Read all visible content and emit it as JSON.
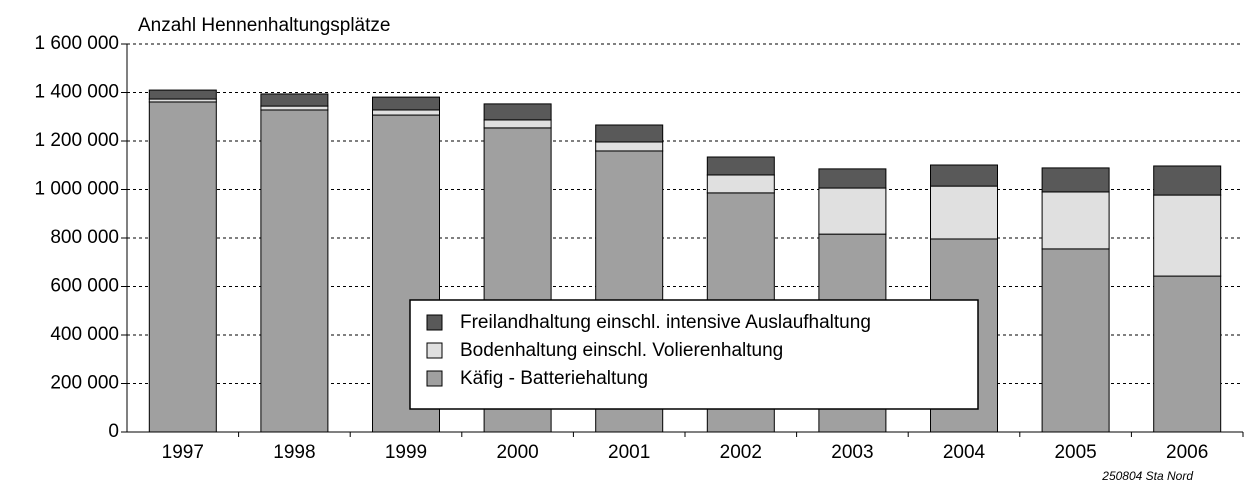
{
  "chart_data": {
    "type": "bar",
    "stacked": true,
    "y_label": "Anzahl Hennenhaltungsplätze",
    "note": "250804 Sta Nord",
    "categories": [
      "1997",
      "1998",
      "1999",
      "2000",
      "2001",
      "2002",
      "2003",
      "2004",
      "2005",
      "2006"
    ],
    "series": [
      {
        "name": "Käfig - Batteriehaltung",
        "color": "#a0a0a0",
        "values": [
          1361000,
          1328000,
          1307000,
          1254000,
          1159000,
          986000,
          816000,
          796000,
          755000,
          643000
        ]
      },
      {
        "name": "Bodenhaltung einschl. Volierenhaltung",
        "color": "#e0e0e0",
        "values": [
          12000,
          16000,
          21000,
          33000,
          37000,
          74000,
          190000,
          218000,
          235000,
          334000
        ]
      },
      {
        "name": "Freilandhaltung einschl. intensive Auslaufhaltung",
        "color": "#595959",
        "values": [
          37000,
          50000,
          53000,
          66000,
          70000,
          74000,
          79000,
          87000,
          99000,
          120000
        ]
      }
    ],
    "ylim": [
      0,
      1600000
    ],
    "yticks": [
      0,
      {
        "value": 200000,
        "label": "200 000"
      },
      {
        "value": 400000,
        "label": "400 000"
      },
      {
        "value": 600000,
        "label": "600 000"
      },
      {
        "value": 800000,
        "label": "800 000"
      },
      {
        "value": 1000000,
        "label": "1 000 000"
      },
      {
        "value": 1200000,
        "label": "1 200 000"
      },
      {
        "value": 1400000,
        "label": "1 400 000"
      },
      {
        "value": 1600000,
        "label": "1 600 000"
      }
    ],
    "grid": true
  }
}
